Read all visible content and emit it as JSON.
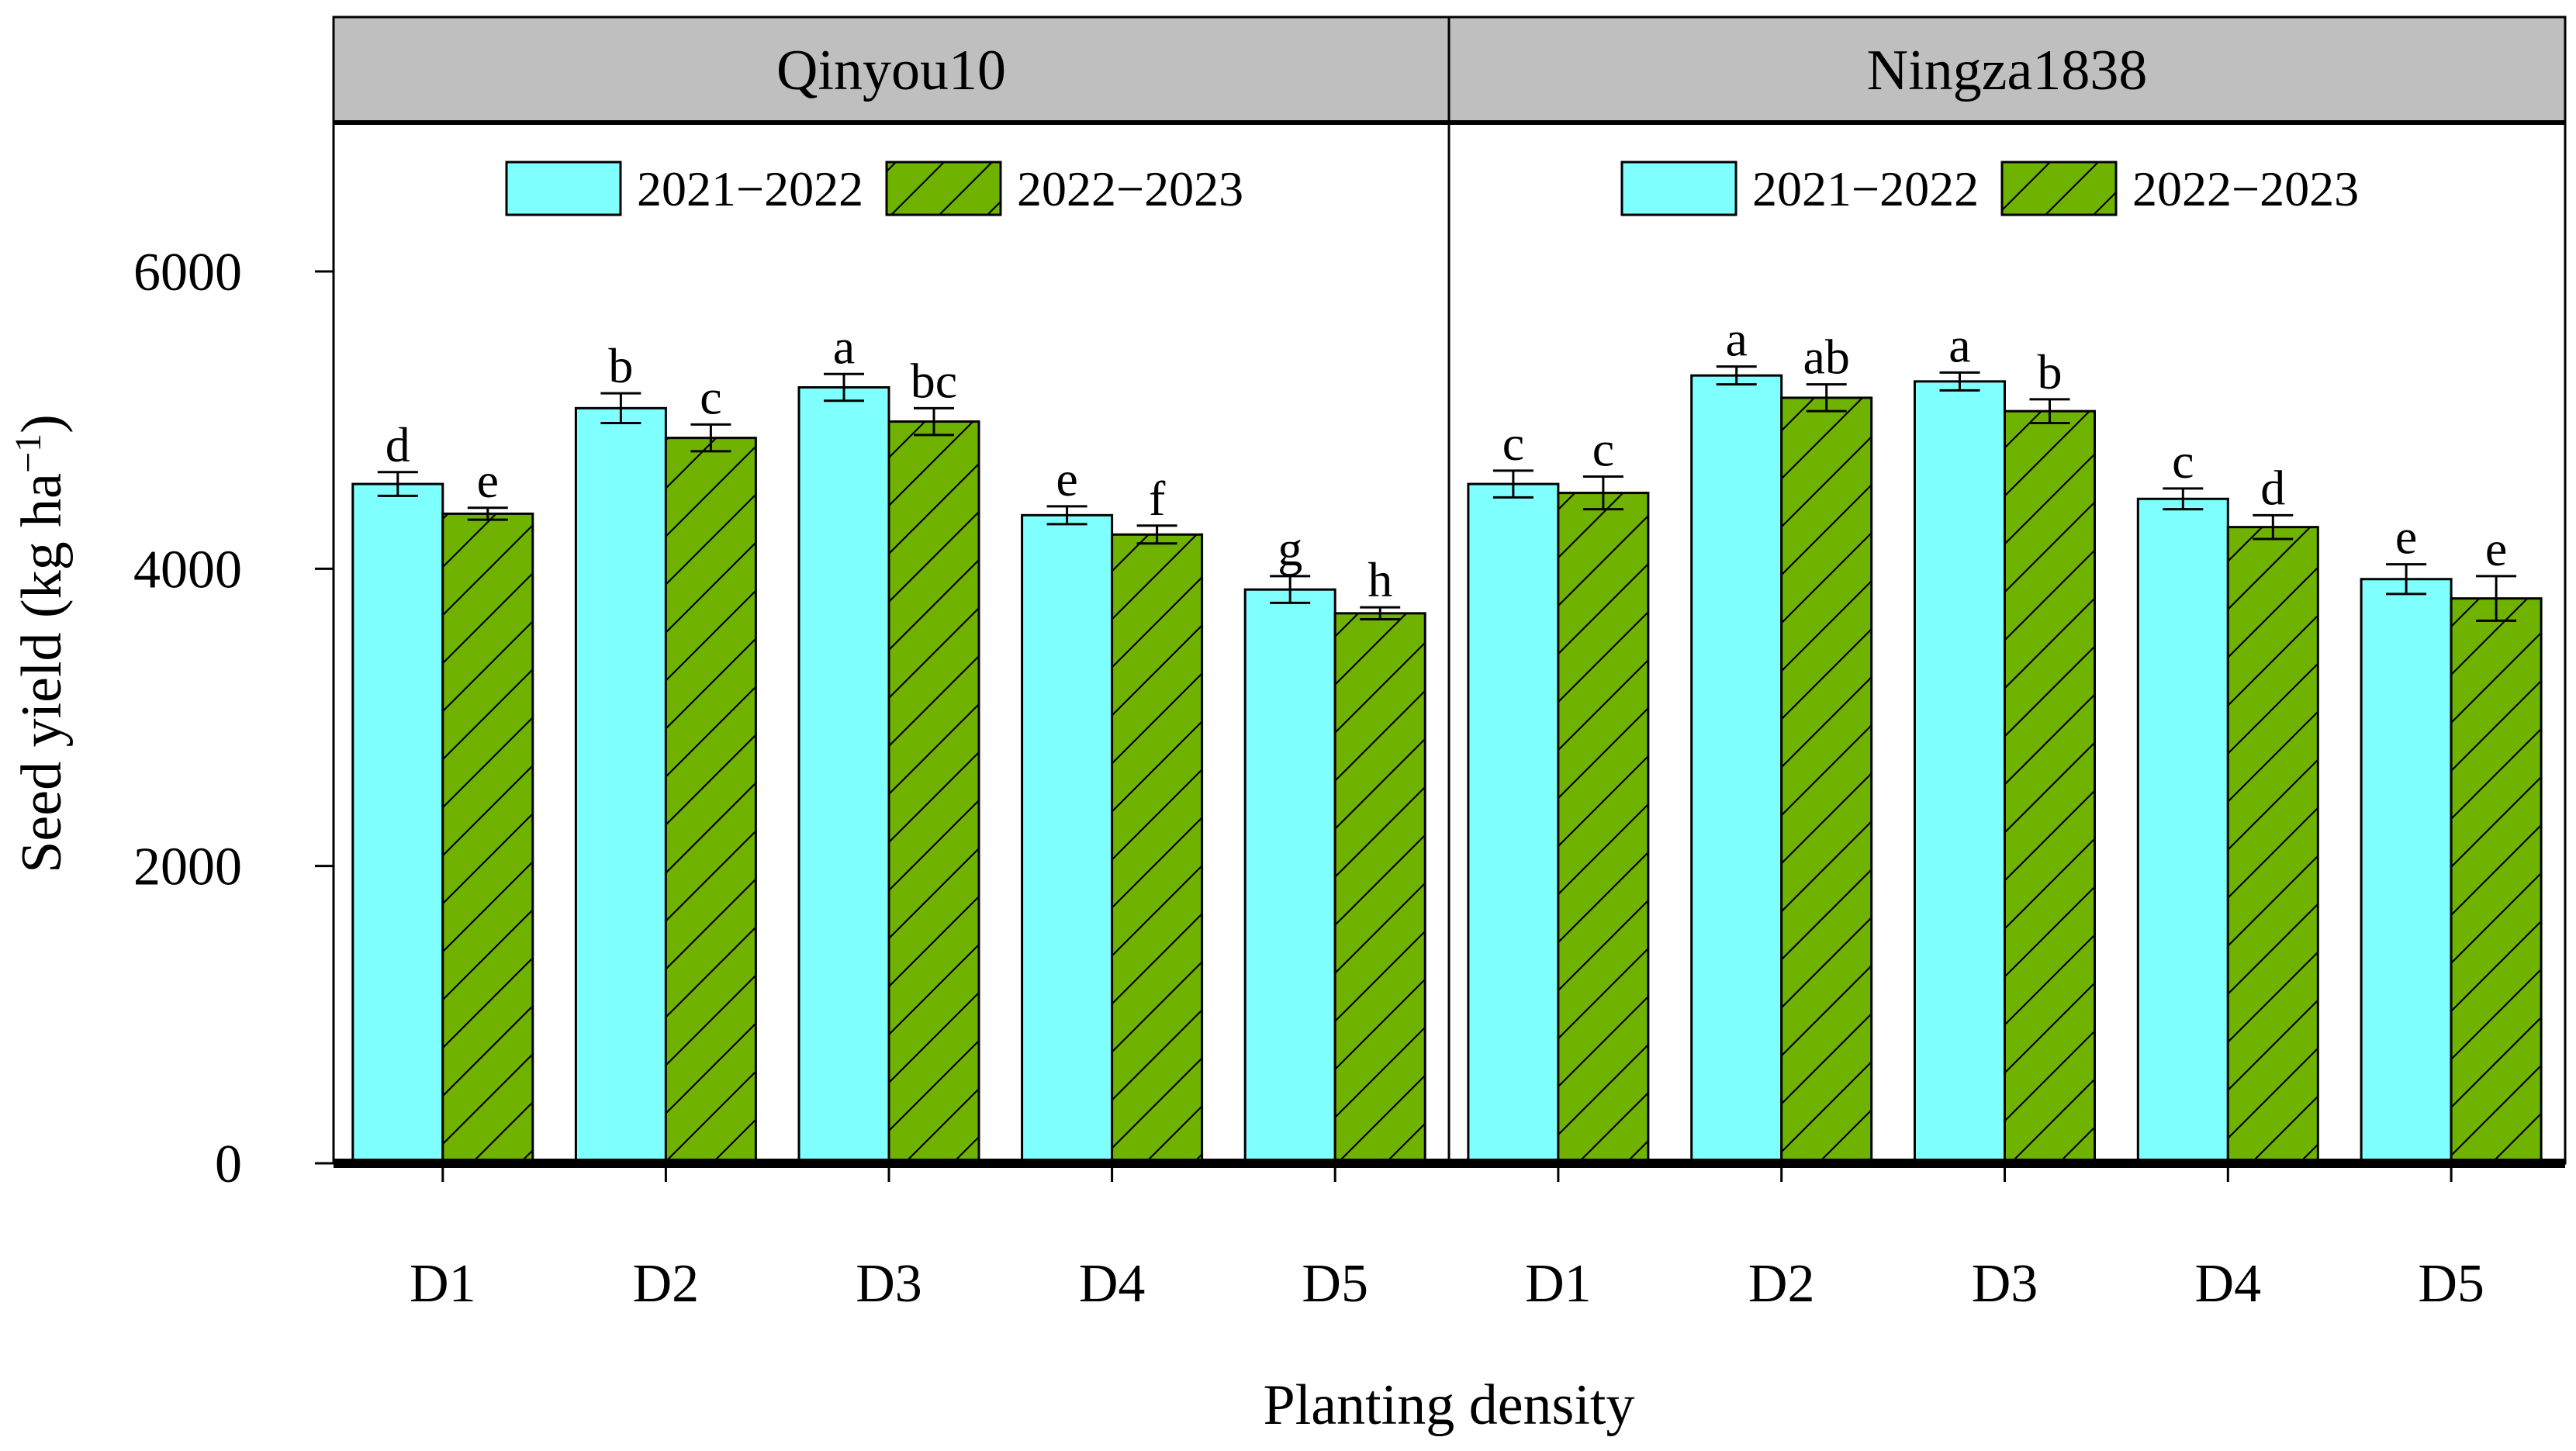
{
  "chart_data": {
    "type": "bar",
    "ylabel_main": "Seed yield (kg ha",
    "ylabel_sup": "−1",
    "ylabel_close": ")",
    "xlabel": "Planting density",
    "ylim": [
      0,
      7000
    ],
    "yticks": [
      "0",
      "2000",
      "4000",
      "6000"
    ],
    "ytick_values": [
      0,
      2000,
      4000,
      6000
    ],
    "categories": [
      "D1",
      "D2",
      "D3",
      "D4",
      "D5"
    ],
    "legend": [
      "2021−2022",
      "2022−2023"
    ],
    "series_colors": [
      "#80ffff",
      "#6fb300"
    ],
    "panels": [
      {
        "title": "Qinyou10",
        "series": [
          {
            "name": "2021−2022",
            "values": [
              4570,
              5080,
              5220,
              4360,
              3860
            ],
            "errors": [
              80,
              100,
              90,
              60,
              90
            ],
            "letters": [
              "d",
              "b",
              "a",
              "e",
              "g"
            ]
          },
          {
            "name": "2022−2023",
            "values": [
              4370,
              4880,
              4990,
              4230,
              3700
            ],
            "errors": [
              40,
              90,
              90,
              60,
              40
            ],
            "letters": [
              "e",
              "c",
              "bc",
              "f",
              "h"
            ]
          }
        ]
      },
      {
        "title": "Ningza1838",
        "series": [
          {
            "name": "2021−2022",
            "values": [
              4570,
              5300,
              5260,
              4470,
              3930
            ],
            "errors": [
              90,
              60,
              60,
              70,
              100
            ],
            "letters": [
              "c",
              "a",
              "a",
              "c",
              "e"
            ]
          },
          {
            "name": "2022−2023",
            "values": [
              4510,
              5150,
              5060,
              4280,
              3800
            ],
            "errors": [
              110,
              90,
              80,
              80,
              150
            ],
            "letters": [
              "c",
              "ab",
              "b",
              "d",
              "e"
            ]
          }
        ]
      }
    ]
  }
}
